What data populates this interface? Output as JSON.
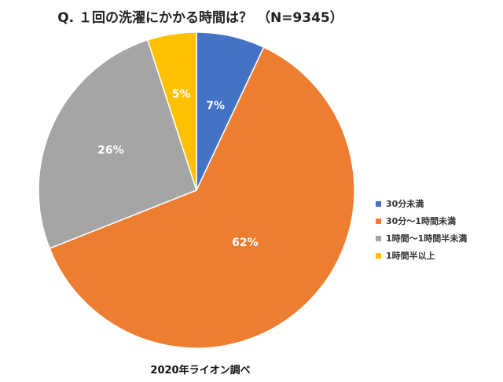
{
  "title": "Q. １回の洗濯にかかる時間は？ （N=9345）",
  "source": "2020年ライオン調べ",
  "chart_data": {
    "type": "pie",
    "title": "Q. １回の洗濯にかかる時間は？ （N=9345）",
    "n": 9345,
    "categories": [
      "30分未満",
      "30分～1時間未満",
      "1時間～1時間半未満",
      "1時間半以上"
    ],
    "values": [
      7,
      62,
      26,
      5
    ],
    "labels": [
      "7%",
      "62%",
      "26%",
      "5%"
    ],
    "colors": [
      "#4472C4",
      "#ED7D31",
      "#A5A5A5",
      "#FFC000"
    ],
    "start_angle": "12 o'clock, clockwise",
    "legend_position": "right",
    "annotation": "2020年ライオン調べ"
  },
  "legend": [
    {
      "label": "30分未満",
      "color": "#4472C4"
    },
    {
      "label": "30分～1時間未満",
      "color": "#ED7D31"
    },
    {
      "label": "1時間～1時間半未満",
      "color": "#A5A5A5"
    },
    {
      "label": "1時間半以上",
      "color": "#FFC000"
    }
  ]
}
